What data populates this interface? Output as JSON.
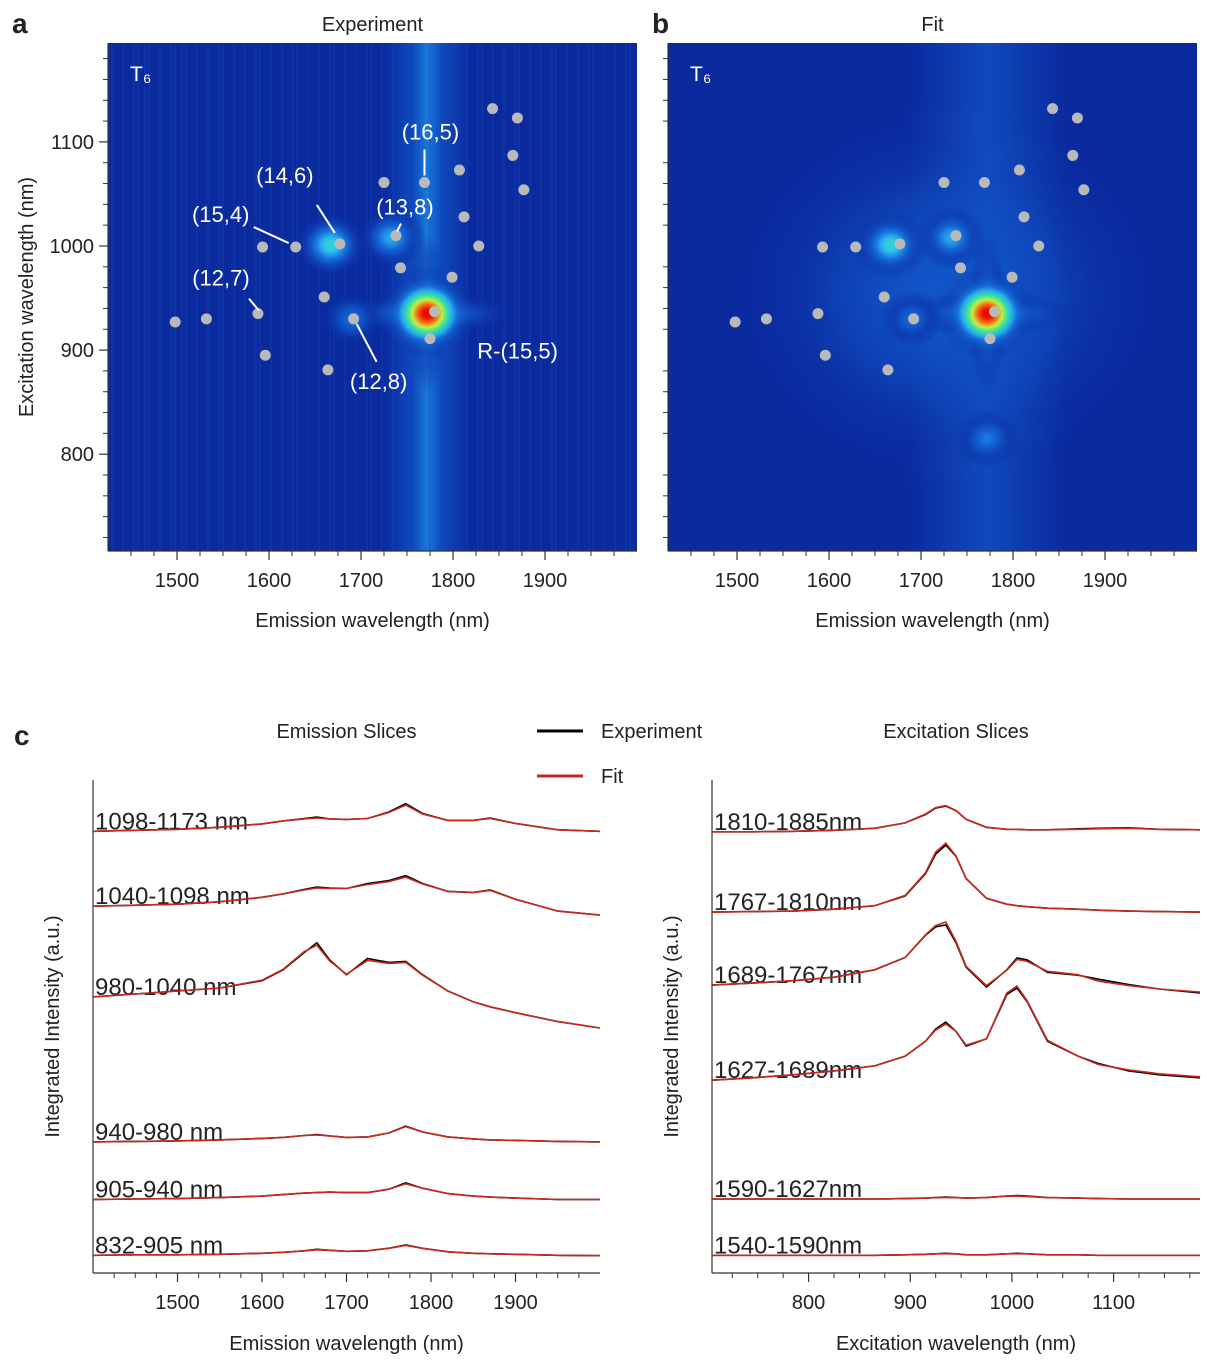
{
  "chart_data": [
    {
      "type": "heatmap",
      "panel": "a",
      "title": "Experiment",
      "label": "T₆",
      "x_label": "Emission wavelength (nm)",
      "y_label": "Excitation wavelength (nm)",
      "xlim": [
        1425,
        2000
      ],
      "ylim": [
        707,
        1195
      ],
      "xticks": [
        1500,
        1600,
        1700,
        1800,
        1900
      ],
      "xminorticks": [
        1450,
        1475,
        1525,
        1550,
        1575,
        1625,
        1650,
        1675,
        1725,
        1750,
        1775,
        1825,
        1850,
        1875,
        1925,
        1950,
        1975
      ],
      "yticks": [
        800,
        900,
        1000,
        1100
      ],
      "yminorticks": [
        720,
        740,
        760,
        780,
        820,
        840,
        860,
        880,
        920,
        940,
        960,
        980,
        1020,
        1040,
        1060,
        1080,
        1120,
        1140,
        1160,
        1180
      ],
      "hotspots": [
        {
          "x": 1772,
          "y": 935,
          "intensity": 1
        },
        {
          "x": 1667,
          "y": 1001,
          "intensity": 0.55
        },
        {
          "x": 1733,
          "y": 1008,
          "intensity": 0.45
        },
        {
          "x": 1690,
          "y": 930,
          "intensity": 0.3
        }
      ],
      "points": {
        "color": "#b9b9b9",
        "x": [
          1498,
          1532,
          1588,
          1596,
          1593,
          1629,
          1677,
          1660,
          1664,
          1692,
          1725,
          1738,
          1743,
          1769,
          1780,
          1775,
          1807,
          1799,
          1812,
          1828,
          1843,
          1870,
          1865,
          1877
        ],
        "y": [
          927,
          930,
          935,
          895,
          999,
          999,
          1002,
          951,
          881,
          930,
          1061,
          1010,
          979,
          1061,
          937,
          911,
          1073,
          970,
          1028,
          1000,
          1132,
          1123,
          1087,
          1054
        ]
      },
      "annotations": [
        {
          "text": "(16,5)",
          "x": 1769,
          "y": 1061
        },
        {
          "text": "(14,6)",
          "x": 1677,
          "y": 1002
        },
        {
          "text": "(15,4)",
          "x": 1629,
          "y": 999
        },
        {
          "text": "(13,8)",
          "x": 1738,
          "y": 1010
        },
        {
          "text": "(12,7)",
          "x": 1588,
          "y": 935
        },
        {
          "text": "(12,8)",
          "x": 1692,
          "y": 930
        },
        {
          "text": "R-(15,5)",
          "x": 1780,
          "y": 937
        }
      ]
    },
    {
      "type": "heatmap",
      "panel": "b",
      "title": "Fit",
      "label": "T₆",
      "x_label": "Emission wavelength (nm)",
      "xlim": [
        1425,
        2000
      ],
      "ylim": [
        707,
        1195
      ],
      "xticks": [
        1500,
        1600,
        1700,
        1800,
        1900
      ],
      "xminorticks": [
        1450,
        1475,
        1525,
        1550,
        1575,
        1625,
        1650,
        1675,
        1725,
        1750,
        1775,
        1825,
        1850,
        1875,
        1925,
        1950,
        1975
      ],
      "yminorticks": [
        720,
        740,
        760,
        780,
        820,
        840,
        860,
        880,
        920,
        940,
        960,
        980,
        1020,
        1040,
        1060,
        1080,
        1120,
        1140,
        1160,
        1180
      ],
      "hotspots": [
        {
          "x": 1772,
          "y": 935,
          "intensity": 1
        },
        {
          "x": 1667,
          "y": 1001,
          "intensity": 0.55
        },
        {
          "x": 1733,
          "y": 1008,
          "intensity": 0.45
        },
        {
          "x": 1772,
          "y": 815,
          "intensity": 0.35
        },
        {
          "x": 1690,
          "y": 930,
          "intensity": 0.3
        }
      ],
      "points": {
        "color": "#b9b9b9",
        "x": [
          1498,
          1532,
          1588,
          1596,
          1593,
          1629,
          1677,
          1660,
          1664,
          1692,
          1725,
          1738,
          1743,
          1769,
          1780,
          1775,
          1807,
          1799,
          1812,
          1828,
          1843,
          1870,
          1865,
          1877
        ],
        "y": [
          927,
          930,
          935,
          895,
          999,
          999,
          1002,
          951,
          881,
          930,
          1061,
          1010,
          979,
          1061,
          937,
          911,
          1073,
          970,
          1028,
          1000,
          1132,
          1123,
          1087,
          1054
        ]
      }
    },
    {
      "type": "line",
      "panel": "c",
      "title": "Emission Slices",
      "x_label": "Emission wavelength (nm)",
      "y_label": "Integrated Intensity (a.u.)",
      "legend": [
        {
          "name": "Experiment",
          "color": "#000000"
        },
        {
          "name": "Fit",
          "color": "#c8281e"
        }
      ],
      "xlim": [
        1400,
        2000
      ],
      "ylim": [
        0,
        100
      ],
      "xticks": [
        1500,
        1600,
        1700,
        1800,
        1900
      ],
      "xminorticks": [
        1425,
        1450,
        1475,
        1525,
        1550,
        1575,
        1625,
        1650,
        1675,
        1725,
        1750,
        1775,
        1825,
        1850,
        1875,
        1925,
        1950,
        1975
      ],
      "x": [
        1400,
        1450,
        1500,
        1550,
        1600,
        1625,
        1650,
        1665,
        1680,
        1700,
        1725,
        1750,
        1770,
        1790,
        1820,
        1850,
        1870,
        1900,
        1950,
        2000
      ],
      "slices": [
        {
          "label": "1098-1173 nm",
          "experiment": [
            89.6,
            89.8,
            90,
            90.4,
            91.1,
            91.7,
            92.2,
            92.5,
            92.1,
            92,
            92.2,
            93.5,
            95.2,
            93.2,
            91.8,
            91.8,
            92.3,
            91.2,
            89.9,
            89.6
          ],
          "fit": [
            89.6,
            89.8,
            90,
            90.4,
            91.1,
            91.7,
            92.1,
            92.3,
            92.1,
            92,
            92.2,
            93.4,
            94.9,
            93.1,
            91.8,
            91.8,
            92.2,
            91.2,
            89.9,
            89.6
          ]
        },
        {
          "label": "1040-1098 nm",
          "experiment": [
            74.4,
            74.6,
            74.8,
            75.3,
            76.2,
            76.9,
            77.8,
            78.3,
            78.1,
            78,
            79,
            79.6,
            80.6,
            79,
            77.4,
            77.2,
            77.7,
            75.8,
            73.4,
            72.6
          ],
          "fit": [
            74.4,
            74.6,
            74.8,
            75.3,
            76.2,
            76.9,
            77.7,
            78.1,
            78,
            78,
            78.8,
            79.4,
            80.3,
            78.9,
            77.4,
            77.2,
            77.6,
            75.8,
            73.4,
            72.6
          ]
        },
        {
          "label": "980-1040 nm",
          "experiment": [
            56,
            56.6,
            57.2,
            57.8,
            59.3,
            61.5,
            65,
            67,
            63.5,
            60.5,
            63.8,
            63,
            63.2,
            60.5,
            57.2,
            55,
            54,
            52.8,
            51,
            49.7
          ],
          "fit": [
            56,
            56.6,
            57.2,
            57.8,
            59.4,
            61.6,
            65.2,
            66.5,
            63.3,
            60.6,
            63.4,
            62.8,
            63,
            60.4,
            57.2,
            55,
            54,
            52.8,
            51,
            49.7
          ]
        },
        {
          "label": "940-980 nm",
          "experiment": [
            26.6,
            26.7,
            26.8,
            27,
            27.3,
            27.5,
            27.9,
            28.1,
            27.8,
            27.5,
            27.6,
            28.4,
            29.8,
            28.6,
            27.6,
            27.2,
            27,
            26.9,
            26.7,
            26.6
          ],
          "fit": [
            26.6,
            26.7,
            26.8,
            27,
            27.3,
            27.5,
            27.9,
            28,
            27.8,
            27.5,
            27.6,
            28.4,
            29.7,
            28.6,
            27.6,
            27.2,
            27,
            26.9,
            26.7,
            26.6
          ]
        },
        {
          "label": "905-940 nm",
          "experiment": [
            14.9,
            15,
            15.1,
            15.3,
            15.6,
            15.9,
            16.2,
            16.3,
            16.4,
            16.3,
            16.3,
            17,
            18.3,
            17.2,
            16.1,
            15.6,
            15.4,
            15.2,
            14.9,
            14.9
          ],
          "fit": [
            14.9,
            15,
            15.1,
            15.3,
            15.6,
            15.9,
            16.2,
            16.3,
            16.4,
            16.3,
            16.3,
            17,
            18.1,
            17.2,
            16.1,
            15.6,
            15.4,
            15.2,
            14.9,
            14.9
          ]
        },
        {
          "label": "832-905 nm",
          "experiment": [
            3.6,
            3.7,
            3.7,
            3.8,
            4,
            4.2,
            4.5,
            4.8,
            4.6,
            4.4,
            4.5,
            5,
            5.7,
            5,
            4.3,
            4,
            3.9,
            3.8,
            3.6,
            3.5
          ],
          "fit": [
            3.6,
            3.7,
            3.7,
            3.8,
            4,
            4.2,
            4.5,
            4.7,
            4.6,
            4.4,
            4.5,
            5,
            5.6,
            5,
            4.3,
            4,
            3.9,
            3.8,
            3.6,
            3.5
          ]
        }
      ]
    },
    {
      "type": "line",
      "title": "Excitation Slices",
      "x_label": "Excitation wavelength (nm)",
      "y_label": "Integrated Intensity (a.u.)",
      "xlim": [
        705,
        1185
      ],
      "ylim": [
        0,
        100
      ],
      "xticks": [
        800,
        900,
        1000,
        1100
      ],
      "xminorticks": [
        725,
        750,
        775,
        825,
        850,
        875,
        925,
        950,
        975,
        1025,
        1050,
        1075,
        1125,
        1150,
        1175
      ],
      "x": [
        705,
        745,
        785,
        825,
        865,
        895,
        915,
        925,
        935,
        945,
        955,
        975,
        995,
        1005,
        1015,
        1035,
        1065,
        1085,
        1115,
        1145,
        1185
      ],
      "slices": [
        {
          "label": "1810-1885nm",
          "experiment": [
            89.5,
            89.5,
            89.6,
            89.8,
            90.2,
            91.3,
            93,
            94.3,
            94.7,
            93.8,
            92,
            90.4,
            90,
            90,
            89.9,
            89.9,
            90.1,
            90.2,
            90.3,
            90,
            89.9
          ],
          "fit": [
            89.5,
            89.5,
            89.6,
            89.8,
            90.2,
            91.3,
            93.1,
            94.4,
            94.8,
            93.8,
            92,
            90.4,
            90,
            90,
            89.9,
            89.9,
            90,
            90.1,
            90.2,
            90,
            89.9
          ]
        },
        {
          "label": "1767-1810nm",
          "experiment": [
            73.2,
            73.3,
            73.4,
            73.8,
            74.5,
            76.5,
            81,
            85,
            86.8,
            84.5,
            80,
            76,
            74.8,
            74.5,
            74.3,
            74,
            73.8,
            73.6,
            73.4,
            73.3,
            73.2
          ],
          "fit": [
            73.2,
            73.3,
            73.4,
            73.8,
            74.5,
            76.6,
            81.2,
            85.4,
            87.2,
            84.6,
            80,
            76,
            74.8,
            74.5,
            74.3,
            74,
            73.8,
            73.6,
            73.4,
            73.3,
            73.2
          ]
        },
        {
          "label": "1689-1767nm",
          "experiment": [
            58.4,
            58.8,
            59.3,
            60,
            61.5,
            64,
            68.5,
            70.2,
            70.6,
            67,
            62,
            58,
            61.5,
            63.9,
            63.5,
            61,
            60.4,
            59.6,
            58.5,
            57.6,
            56.8
          ],
          "fit": [
            58.4,
            58.8,
            59.3,
            60,
            61.5,
            64,
            68.6,
            70.5,
            71.2,
            67.3,
            62.2,
            58.3,
            61.4,
            63.6,
            63.2,
            61.2,
            60.5,
            59.2,
            58.3,
            57.6,
            57
          ]
        },
        {
          "label": "1627-1689nm",
          "experiment": [
            39.1,
            39.6,
            40.2,
            41,
            42,
            44,
            47,
            49.5,
            50.9,
            49,
            46,
            47.5,
            56.5,
            57.8,
            55,
            47,
            44,
            42.5,
            41,
            40.2,
            39.6
          ],
          "fit": [
            39.1,
            39.6,
            40.2,
            41,
            42,
            44,
            47,
            49.3,
            50.5,
            49,
            46.2,
            47.5,
            56.8,
            58.2,
            55.2,
            47.2,
            44,
            42.3,
            41.2,
            40.4,
            39.8
          ]
        },
        {
          "label": "1590-1627nm",
          "experiment": [
            15,
            15,
            15,
            15,
            15,
            15.1,
            15.2,
            15.3,
            15.4,
            15.3,
            15.2,
            15.3,
            15.6,
            15.7,
            15.6,
            15.3,
            15.2,
            15.1,
            15,
            15,
            15
          ],
          "fit": [
            15,
            15,
            15,
            15,
            15,
            15.1,
            15.2,
            15.3,
            15.3,
            15.3,
            15.2,
            15.3,
            15.6,
            15.6,
            15.5,
            15.3,
            15.2,
            15.1,
            15,
            15,
            15
          ]
        },
        {
          "label": "1540-1590nm",
          "experiment": [
            3.6,
            3.6,
            3.6,
            3.6,
            3.6,
            3.7,
            3.8,
            3.9,
            4,
            3.9,
            3.7,
            3.7,
            3.9,
            4,
            3.9,
            3.7,
            3.7,
            3.6,
            3.6,
            3.6,
            3.6
          ],
          "fit": [
            3.6,
            3.6,
            3.6,
            3.6,
            3.6,
            3.7,
            3.8,
            3.9,
            3.9,
            3.9,
            3.7,
            3.7,
            3.9,
            3.9,
            3.9,
            3.7,
            3.7,
            3.6,
            3.6,
            3.6,
            3.6
          ]
        }
      ]
    }
  ]
}
